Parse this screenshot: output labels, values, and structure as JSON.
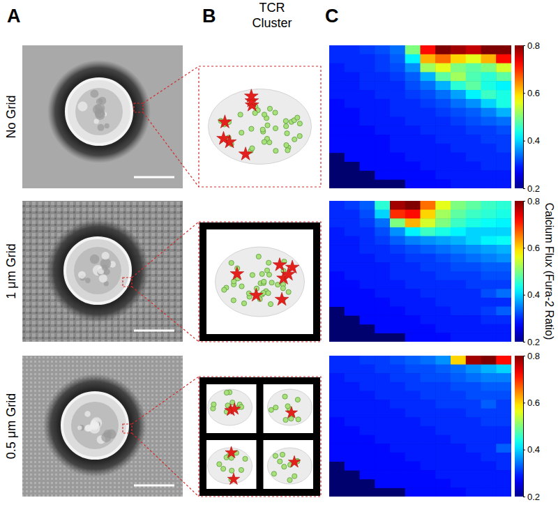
{
  "figure": {
    "panel_labels": [
      "A",
      "B",
      "C"
    ],
    "column_title": [
      "TCR",
      "Cluster"
    ],
    "row_labels": [
      "No Grid",
      "1 μm Grid",
      "0.5 μm Grid"
    ],
    "colorbar_title": "Calcium Flux (Fura-2 Ratio)"
  },
  "chart_data": [
    {
      "type": "heatmap",
      "tick_labels": false,
      "colorbar_range": [
        0.2,
        0.8
      ],
      "colorbar_ticks": [
        0.8,
        0.6,
        0.4,
        0.2
      ],
      "values": [
        [
          0.3,
          0.3,
          0.31,
          0.32,
          0.34,
          0.5,
          0.72,
          0.8,
          0.78,
          0.76,
          0.8,
          0.8
        ],
        [
          0.3,
          0.3,
          0.3,
          0.31,
          0.33,
          0.42,
          0.62,
          0.66,
          0.6,
          0.56,
          0.62,
          0.72
        ],
        [
          0.29,
          0.3,
          0.3,
          0.31,
          0.32,
          0.36,
          0.52,
          0.56,
          0.5,
          0.48,
          0.5,
          0.55
        ],
        [
          0.29,
          0.29,
          0.3,
          0.3,
          0.31,
          0.33,
          0.38,
          0.48,
          0.52,
          0.47,
          0.45,
          0.48
        ],
        [
          0.29,
          0.29,
          0.3,
          0.3,
          0.3,
          0.32,
          0.34,
          0.38,
          0.45,
          0.48,
          0.44,
          0.42
        ],
        [
          0.29,
          0.29,
          0.29,
          0.3,
          0.3,
          0.31,
          0.32,
          0.34,
          0.37,
          0.42,
          0.46,
          0.44
        ],
        [
          0.28,
          0.29,
          0.29,
          0.29,
          0.3,
          0.3,
          0.31,
          0.32,
          0.34,
          0.36,
          0.4,
          0.44
        ],
        [
          0.28,
          0.28,
          0.29,
          0.29,
          0.3,
          0.3,
          0.3,
          0.31,
          0.32,
          0.33,
          0.35,
          0.38
        ],
        [
          0.28,
          0.28,
          0.29,
          0.29,
          0.29,
          0.3,
          0.3,
          0.3,
          0.31,
          0.32,
          0.33,
          0.34
        ],
        [
          0.28,
          0.28,
          0.28,
          0.29,
          0.29,
          0.29,
          0.3,
          0.3,
          0.3,
          0.31,
          0.31,
          0.32
        ],
        [
          0.28,
          0.28,
          0.28,
          0.28,
          0.29,
          0.29,
          0.29,
          0.3,
          0.3,
          0.3,
          0.31,
          0.31
        ],
        [
          0.28,
          0.28,
          0.28,
          0.28,
          0.29,
          0.29,
          0.29,
          0.29,
          0.3,
          0.3,
          0.3,
          0.31
        ],
        [
          null,
          0.28,
          0.28,
          0.28,
          0.28,
          0.29,
          0.29,
          0.29,
          0.29,
          0.3,
          0.3,
          0.3
        ],
        [
          null,
          null,
          0.28,
          0.28,
          0.28,
          0.28,
          0.29,
          0.29,
          0.29,
          0.29,
          0.3,
          0.3
        ],
        [
          null,
          null,
          null,
          0.28,
          0.28,
          0.28,
          0.28,
          0.29,
          0.29,
          0.29,
          0.29,
          0.29
        ],
        [
          null,
          null,
          null,
          null,
          null,
          0.28,
          0.28,
          0.28,
          0.29,
          0.29,
          0.29,
          0.29
        ]
      ]
    },
    {
      "type": "heatmap",
      "tick_labels": false,
      "colorbar_range": [
        0.2,
        0.8
      ],
      "colorbar_ticks": [
        0.8,
        0.6,
        0.4,
        0.2
      ],
      "values": [
        [
          0.3,
          0.31,
          0.33,
          0.45,
          0.78,
          0.8,
          0.66,
          0.56,
          0.5,
          0.48,
          0.46,
          0.45
        ],
        [
          0.3,
          0.3,
          0.32,
          0.4,
          0.7,
          0.72,
          0.6,
          0.52,
          0.48,
          0.46,
          0.45,
          0.44
        ],
        [
          0.3,
          0.3,
          0.31,
          0.34,
          0.5,
          0.62,
          0.55,
          0.5,
          0.46,
          0.44,
          0.43,
          0.42
        ],
        [
          0.29,
          0.3,
          0.3,
          0.32,
          0.36,
          0.42,
          0.46,
          0.44,
          0.42,
          0.4,
          0.4,
          0.4
        ],
        [
          0.29,
          0.29,
          0.3,
          0.31,
          0.33,
          0.35,
          0.36,
          0.37,
          0.38,
          0.4,
          0.42,
          0.43
        ],
        [
          0.29,
          0.29,
          0.3,
          0.3,
          0.31,
          0.32,
          0.33,
          0.34,
          0.35,
          0.36,
          0.37,
          0.38
        ],
        [
          0.29,
          0.29,
          0.29,
          0.3,
          0.3,
          0.31,
          0.31,
          0.32,
          0.33,
          0.34,
          0.35,
          0.36
        ],
        [
          0.29,
          0.29,
          0.29,
          0.29,
          0.3,
          0.3,
          0.31,
          0.31,
          0.32,
          0.32,
          0.33,
          0.33
        ],
        [
          0.28,
          0.29,
          0.29,
          0.29,
          0.3,
          0.3,
          0.3,
          0.31,
          0.31,
          0.31,
          0.32,
          0.32
        ],
        [
          0.28,
          0.28,
          0.29,
          0.29,
          0.29,
          0.3,
          0.3,
          0.3,
          0.3,
          0.31,
          0.31,
          0.31
        ],
        [
          0.28,
          0.28,
          0.28,
          0.29,
          0.29,
          0.29,
          0.3,
          0.3,
          0.3,
          0.3,
          0.32,
          0.34
        ],
        [
          0.28,
          0.28,
          0.28,
          0.28,
          0.29,
          0.29,
          0.29,
          0.3,
          0.3,
          0.3,
          0.3,
          0.3
        ],
        [
          null,
          0.28,
          0.28,
          0.28,
          0.28,
          0.29,
          0.29,
          0.29,
          0.3,
          0.3,
          0.31,
          0.33
        ],
        [
          null,
          null,
          0.28,
          0.28,
          0.28,
          0.28,
          0.29,
          0.29,
          0.29,
          0.29,
          0.3,
          0.3
        ],
        [
          null,
          null,
          null,
          0.28,
          0.28,
          0.28,
          0.28,
          0.29,
          0.29,
          0.29,
          0.29,
          0.29
        ],
        [
          null,
          null,
          null,
          null,
          null,
          0.28,
          0.28,
          0.28,
          0.29,
          0.29,
          0.29,
          0.29
        ]
      ]
    },
    {
      "type": "heatmap",
      "tick_labels": false,
      "colorbar_range": [
        0.2,
        0.8
      ],
      "colorbar_ticks": [
        0.8,
        0.6,
        0.4,
        0.2
      ],
      "values": [
        [
          0.3,
          0.3,
          0.31,
          0.31,
          0.32,
          0.33,
          0.34,
          0.36,
          0.6,
          0.78,
          0.8,
          0.72
        ],
        [
          0.3,
          0.3,
          0.3,
          0.31,
          0.31,
          0.32,
          0.32,
          0.33,
          0.34,
          0.36,
          0.38,
          0.4
        ],
        [
          0.29,
          0.3,
          0.3,
          0.3,
          0.31,
          0.31,
          0.32,
          0.32,
          0.33,
          0.34,
          0.35,
          0.35
        ],
        [
          0.29,
          0.29,
          0.3,
          0.3,
          0.3,
          0.31,
          0.31,
          0.31,
          0.32,
          0.32,
          0.33,
          0.33
        ],
        [
          0.29,
          0.29,
          0.29,
          0.3,
          0.3,
          0.3,
          0.31,
          0.31,
          0.31,
          0.32,
          0.32,
          0.32
        ],
        [
          0.29,
          0.29,
          0.29,
          0.29,
          0.3,
          0.3,
          0.3,
          0.31,
          0.31,
          0.31,
          0.33,
          0.31
        ],
        [
          0.29,
          0.29,
          0.29,
          0.29,
          0.29,
          0.3,
          0.3,
          0.3,
          0.3,
          0.31,
          0.31,
          0.31
        ],
        [
          0.28,
          0.29,
          0.29,
          0.29,
          0.29,
          0.29,
          0.3,
          0.3,
          0.3,
          0.3,
          0.31,
          0.31
        ],
        [
          0.28,
          0.28,
          0.29,
          0.29,
          0.29,
          0.29,
          0.29,
          0.3,
          0.3,
          0.3,
          0.3,
          0.3
        ],
        [
          0.28,
          0.28,
          0.28,
          0.29,
          0.29,
          0.29,
          0.29,
          0.29,
          0.3,
          0.3,
          0.3,
          0.3
        ],
        [
          0.28,
          0.28,
          0.28,
          0.28,
          0.29,
          0.29,
          0.29,
          0.29,
          0.29,
          0.3,
          0.3,
          0.33
        ],
        [
          0.28,
          0.28,
          0.28,
          0.28,
          0.28,
          0.29,
          0.29,
          0.29,
          0.29,
          0.29,
          0.3,
          0.3
        ],
        [
          null,
          0.28,
          0.28,
          0.28,
          0.28,
          0.28,
          0.29,
          0.29,
          0.29,
          0.29,
          0.29,
          0.3
        ],
        [
          null,
          null,
          0.28,
          0.28,
          0.28,
          0.28,
          0.28,
          0.29,
          0.29,
          0.29,
          0.29,
          0.29
        ],
        [
          null,
          null,
          null,
          0.28,
          0.28,
          0.28,
          0.28,
          0.28,
          0.29,
          0.29,
          0.29,
          0.29
        ],
        [
          null,
          null,
          null,
          null,
          null,
          0.28,
          0.28,
          0.28,
          0.28,
          0.29,
          0.29,
          0.29
        ]
      ]
    }
  ]
}
